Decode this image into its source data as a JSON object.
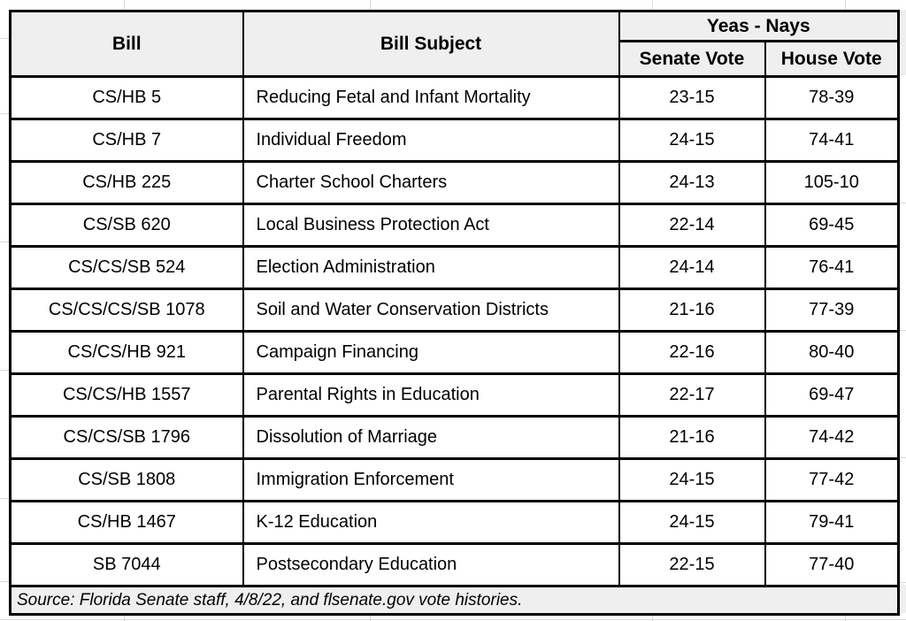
{
  "chart_data": {
    "type": "table",
    "group_header": "Yeas - Nays",
    "columns": [
      "Bill",
      "Bill Subject",
      "Senate Vote",
      "House Vote"
    ],
    "rows": [
      [
        "CS/HB 5",
        "Reducing Fetal and Infant Mortality",
        "23-15",
        "78-39"
      ],
      [
        "CS/HB 7",
        "Individual Freedom",
        "24-15",
        "74-41"
      ],
      [
        "CS/HB 225",
        "Charter School Charters",
        "24-13",
        "105-10"
      ],
      [
        "CS/SB 620",
        "Local Business Protection Act",
        "22-14",
        "69-45"
      ],
      [
        "CS/CS/SB 524",
        "Election Administration",
        "24-14",
        "76-41"
      ],
      [
        "CS/CS/CS/SB 1078",
        "Soil and Water Conservation Districts",
        "21-16",
        "77-39"
      ],
      [
        "CS/CS/HB 921",
        "Campaign Financing",
        "22-16",
        "80-40"
      ],
      [
        "CS/CS/HB 1557",
        "Parental Rights in Education",
        "22-17",
        "69-47"
      ],
      [
        "CS/CS/SB 1796",
        "Dissolution of Marriage",
        "21-16",
        "74-42"
      ],
      [
        "CS/SB 1808",
        "Immigration Enforcement",
        "24-15",
        "77-42"
      ],
      [
        "CS/HB 1467",
        "K-12 Education",
        "24-15",
        "79-41"
      ],
      [
        "SB 7044",
        "Postsecondary Education",
        "22-15",
        "77-40"
      ]
    ],
    "source": "Source: Florida Senate staff, 4/8/22, and flsenate.gov vote histories.",
    "layout_hints": {
      "grid": "off",
      "header_rows": 2,
      "spanned_columns_under_group_header": [
        "Senate Vote",
        "House Vote"
      ]
    }
  },
  "colors": {
    "header_fill": "#efefef",
    "row_fill": "#ffffff",
    "border": "#000000",
    "margin_gridline": "#d9d9d9",
    "text": "#000000"
  }
}
